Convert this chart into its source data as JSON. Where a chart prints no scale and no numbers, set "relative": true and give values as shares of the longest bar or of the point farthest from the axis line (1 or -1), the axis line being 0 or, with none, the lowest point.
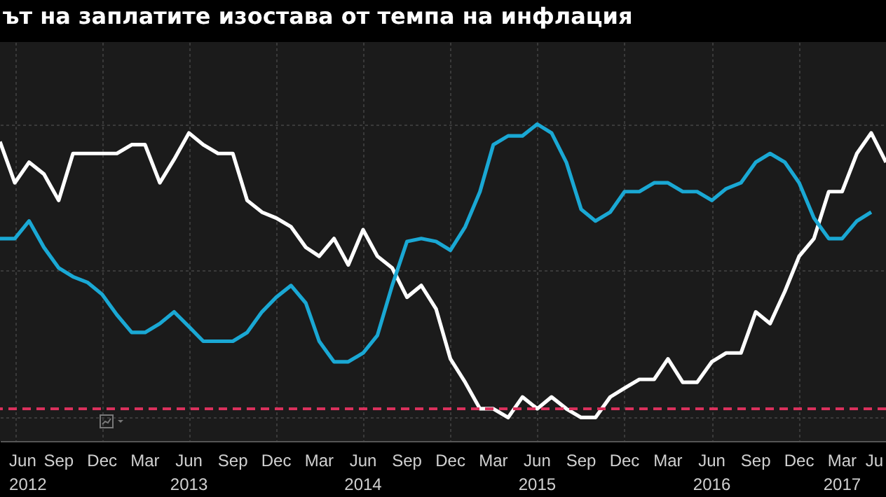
{
  "chart_data": {
    "type": "line",
    "title": "ът на заплатите изостава от темпа на инфлация",
    "relative": true,
    "grid": true,
    "x": [
      "2012-05",
      "2012-06",
      "2012-07",
      "2012-08",
      "2012-09",
      "2012-10",
      "2012-11",
      "2012-12",
      "2013-01",
      "2013-02",
      "2013-03",
      "2013-04",
      "2013-05",
      "2013-06",
      "2013-07",
      "2013-08",
      "2013-09",
      "2013-10",
      "2013-11",
      "2013-12",
      "2014-01",
      "2014-02",
      "2014-03",
      "2014-04",
      "2014-05",
      "2014-06",
      "2014-07",
      "2014-08",
      "2014-09",
      "2014-10",
      "2014-11",
      "2014-12",
      "2015-01",
      "2015-02",
      "2015-03",
      "2015-04",
      "2015-05",
      "2015-06",
      "2015-07",
      "2015-08",
      "2015-09",
      "2015-10",
      "2015-11",
      "2015-12",
      "2016-01",
      "2016-02",
      "2016-03",
      "2016-04",
      "2016-05",
      "2016-06",
      "2016-07",
      "2016-08",
      "2016-09",
      "2016-10",
      "2016-11",
      "2016-12",
      "2017-01",
      "2017-02",
      "2017-03",
      "2017-04",
      "2017-05",
      "2017-06"
    ],
    "xlim": [
      "2012-05",
      "2017-06"
    ],
    "xticks": [
      {
        "value": "2012-06",
        "label": "Jun\n2012"
      },
      {
        "value": "2012-09",
        "label": "Sep"
      },
      {
        "value": "2012-12",
        "label": "Dec"
      },
      {
        "value": "2013-03",
        "label": "Mar"
      },
      {
        "value": "2013-06",
        "label": "Jun\n2013"
      },
      {
        "value": "2013-09",
        "label": "Sep"
      },
      {
        "value": "2013-12",
        "label": "Dec"
      },
      {
        "value": "2014-03",
        "label": "Mar"
      },
      {
        "value": "2014-06",
        "label": "Jun\n2014"
      },
      {
        "value": "2014-09",
        "label": "Sep"
      },
      {
        "value": "2014-12",
        "label": "Dec"
      },
      {
        "value": "2015-03",
        "label": "Mar"
      },
      {
        "value": "2015-06",
        "label": "Jun\n2015"
      },
      {
        "value": "2015-09",
        "label": "Sep"
      },
      {
        "value": "2015-12",
        "label": "Dec"
      },
      {
        "value": "2016-03",
        "label": "Mar"
      },
      {
        "value": "2016-06",
        "label": "Jun\n2016"
      },
      {
        "value": "2016-09",
        "label": "Sep"
      },
      {
        "value": "2016-12",
        "label": "Dec"
      },
      {
        "value": "2017-03",
        "label": "Mar\n2017"
      },
      {
        "value": "2017-06",
        "label": "Ju"
      }
    ],
    "series": [
      {
        "color": "#ffffff",
        "values": [
          0.94,
          0.8,
          0.87,
          0.83,
          0.74,
          0.9,
          0.9,
          0.9,
          0.9,
          0.93,
          0.93,
          0.8,
          0.88,
          0.97,
          0.93,
          0.9,
          0.9,
          0.74,
          0.7,
          0.68,
          0.65,
          0.58,
          0.55,
          0.61,
          0.52,
          0.64,
          0.55,
          0.51,
          0.41,
          0.45,
          0.37,
          0.2,
          0.12,
          0.03,
          0.03,
          0.0,
          0.07,
          0.03,
          0.07,
          0.03,
          0.0,
          0.0,
          0.07,
          0.1,
          0.13,
          0.13,
          0.2,
          0.12,
          0.12,
          0.19,
          0.22,
          0.22,
          0.36,
          0.32,
          0.43,
          0.55,
          0.61,
          0.77,
          0.77,
          0.9,
          0.97,
          0.87
        ]
      },
      {
        "color": "#1aa8d4",
        "values": [
          0.61,
          0.61,
          0.67,
          0.58,
          0.51,
          0.48,
          0.46,
          0.42,
          0.35,
          0.29,
          0.29,
          0.32,
          0.36,
          0.31,
          0.26,
          0.26,
          0.26,
          0.29,
          0.36,
          0.41,
          0.45,
          0.39,
          0.26,
          0.19,
          0.19,
          0.22,
          0.28,
          0.45,
          0.6,
          0.61,
          0.6,
          0.57,
          0.65,
          0.77,
          0.93,
          0.96,
          0.96,
          1.0,
          0.97,
          0.87,
          0.71,
          0.67,
          0.7,
          0.77,
          0.77,
          0.8,
          0.8,
          0.77,
          0.77,
          0.74,
          0.78,
          0.8,
          0.87,
          0.9,
          0.87,
          0.8,
          0.68,
          0.61,
          0.61,
          0.67,
          0.7,
          null
        ]
      }
    ],
    "ref_lines": [
      {
        "axis": "y",
        "value": 0.03,
        "color": "#d9305c",
        "line_style": "dashed"
      }
    ]
  }
}
